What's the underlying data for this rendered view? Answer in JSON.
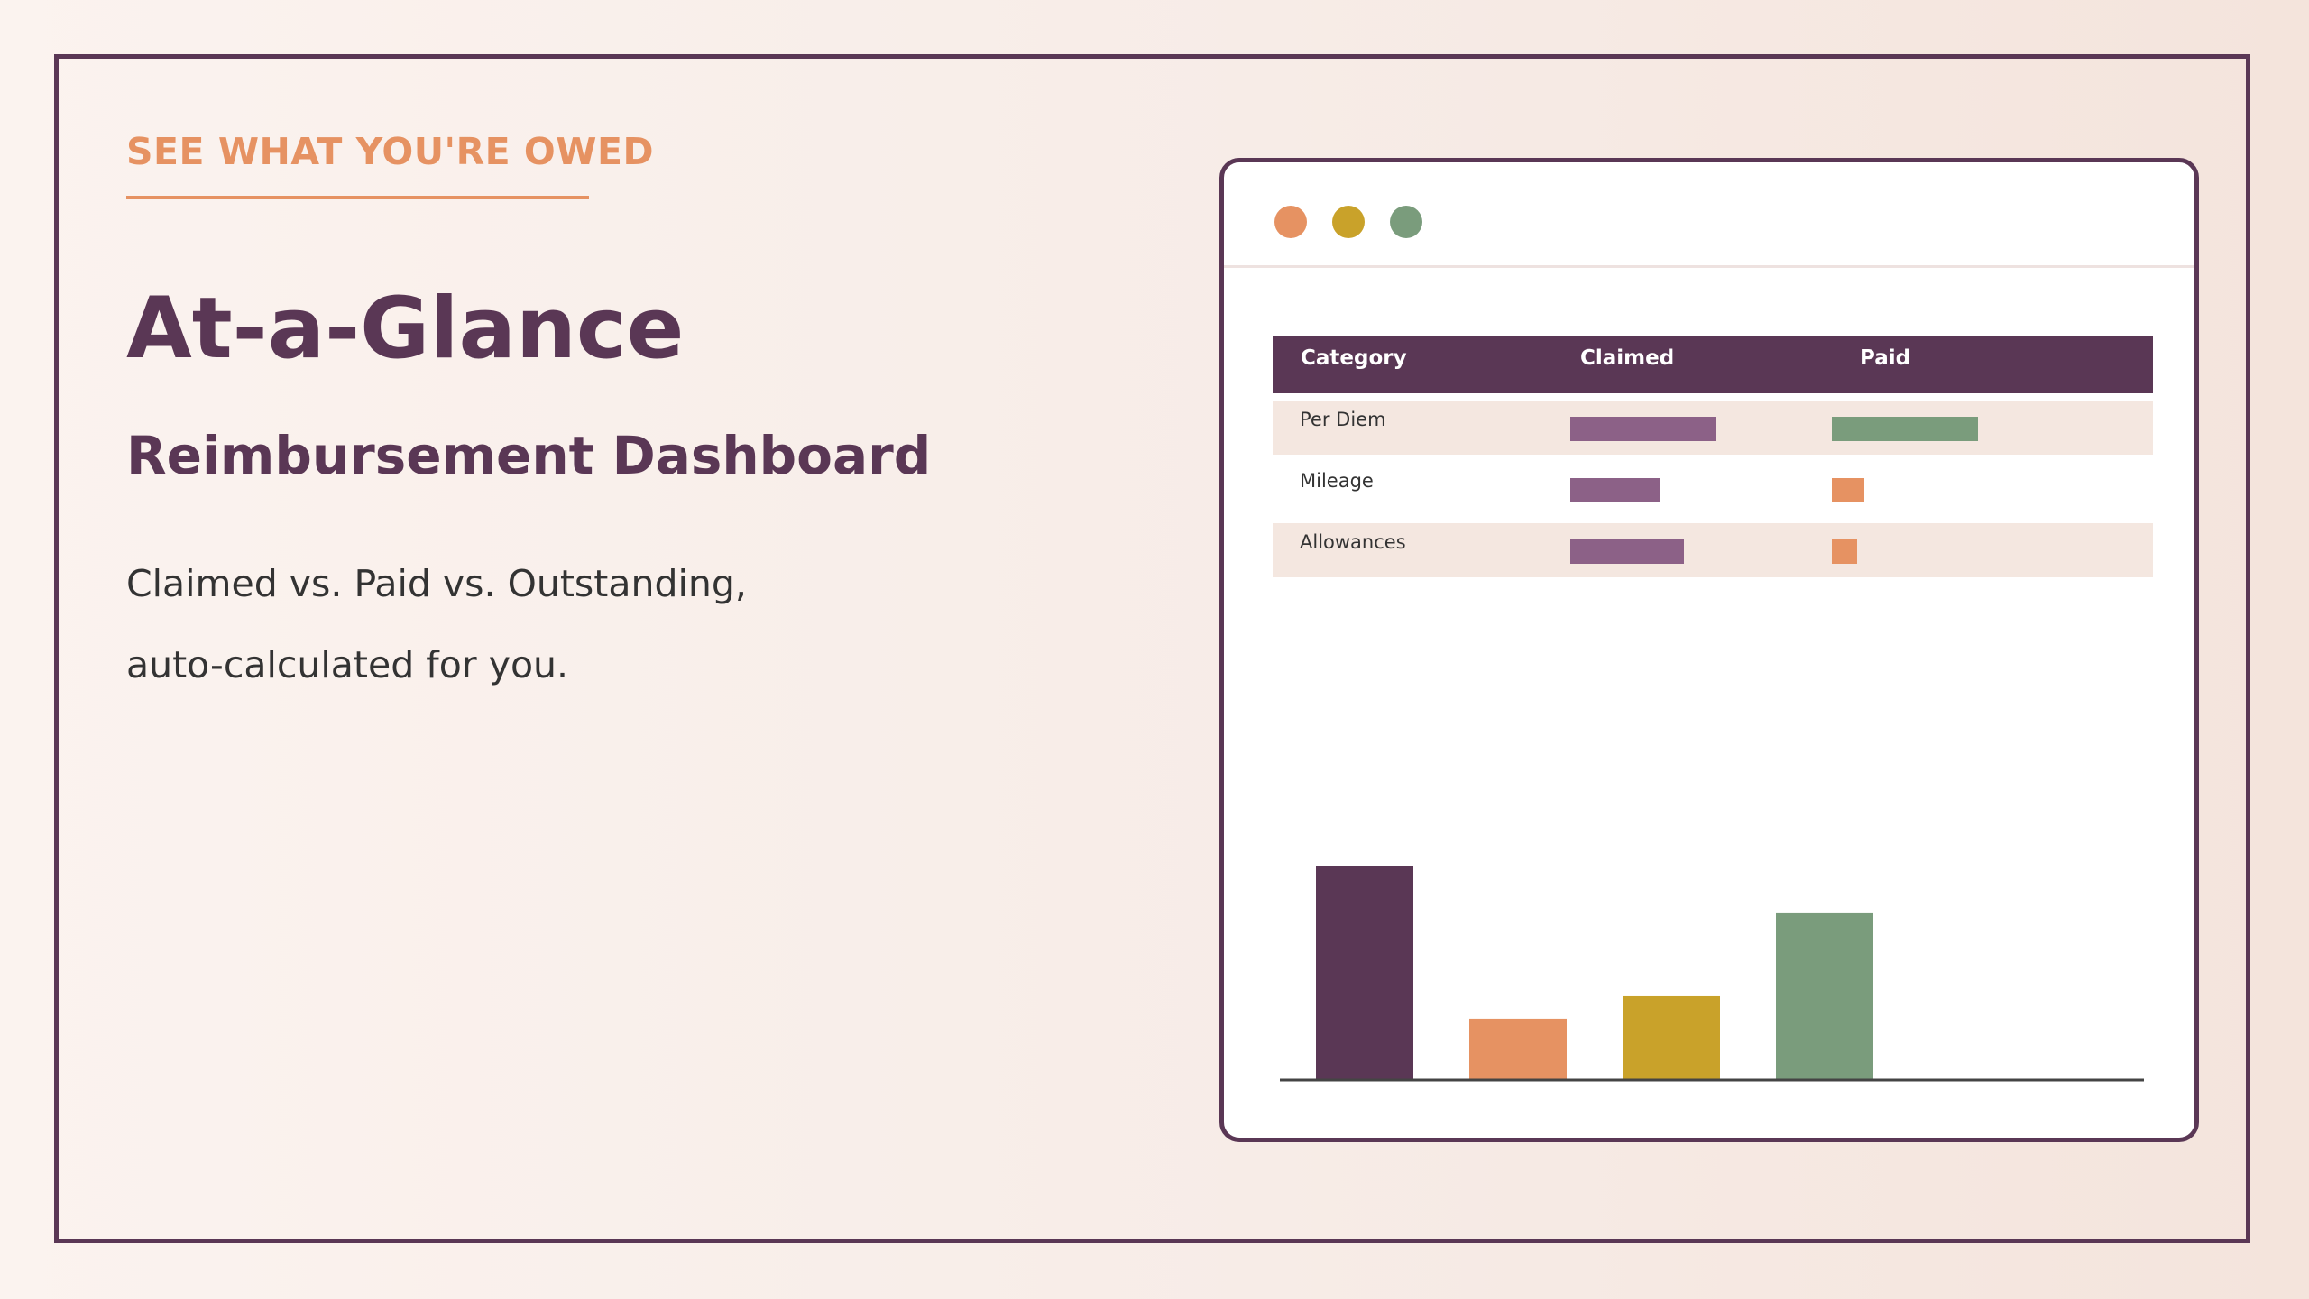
{
  "slide": {
    "eyebrow": "SEE WHAT YOU'RE OWED",
    "headline": "At-a-Glance",
    "subhead": "Reimbursement Dashboard",
    "body_lines": [
      "Claimed vs. Paid vs. Outstanding,",
      "auto-calculated for you."
    ]
  },
  "colors": {
    "plum": "#5a3755",
    "mauve": "#8c6187",
    "coral": "#e69262",
    "mustard": "#c9a22a",
    "sage": "#7a9c7c",
    "row_tint": "#f4e7e0"
  },
  "window": {
    "dots": [
      {
        "name": "coral-dot",
        "color": "#e69262"
      },
      {
        "name": "mustard-dot",
        "color": "#c9a22a"
      },
      {
        "name": "sage-dot",
        "color": "#7a9c7c"
      }
    ]
  },
  "table": {
    "headers": [
      "Category",
      "Claimed",
      "Paid"
    ],
    "rows": [
      {
        "label": "Per Diem",
        "claimed": 100,
        "paid": 100,
        "claimed_color": "#8c6187",
        "paid_color": "#7a9c7c",
        "shaded": true
      },
      {
        "label": "Mileage",
        "claimed": 62,
        "paid": 22,
        "claimed_color": "#8c6187",
        "paid_color": "#e69262",
        "shaded": false
      },
      {
        "label": "Allowances",
        "claimed": 78,
        "paid": 17,
        "claimed_color": "#8c6187",
        "paid_color": "#e69262",
        "shaded": true
      }
    ]
  },
  "chart_data": {
    "type": "bar",
    "values": [
      100,
      28,
      39,
      78
    ],
    "colors": [
      "#5a3755",
      "#e69262",
      "#c9a22a",
      "#7a9c7c"
    ],
    "ylim": [
      0,
      100
    ],
    "grid": false,
    "title": "",
    "xlabel": "",
    "ylabel": ""
  }
}
